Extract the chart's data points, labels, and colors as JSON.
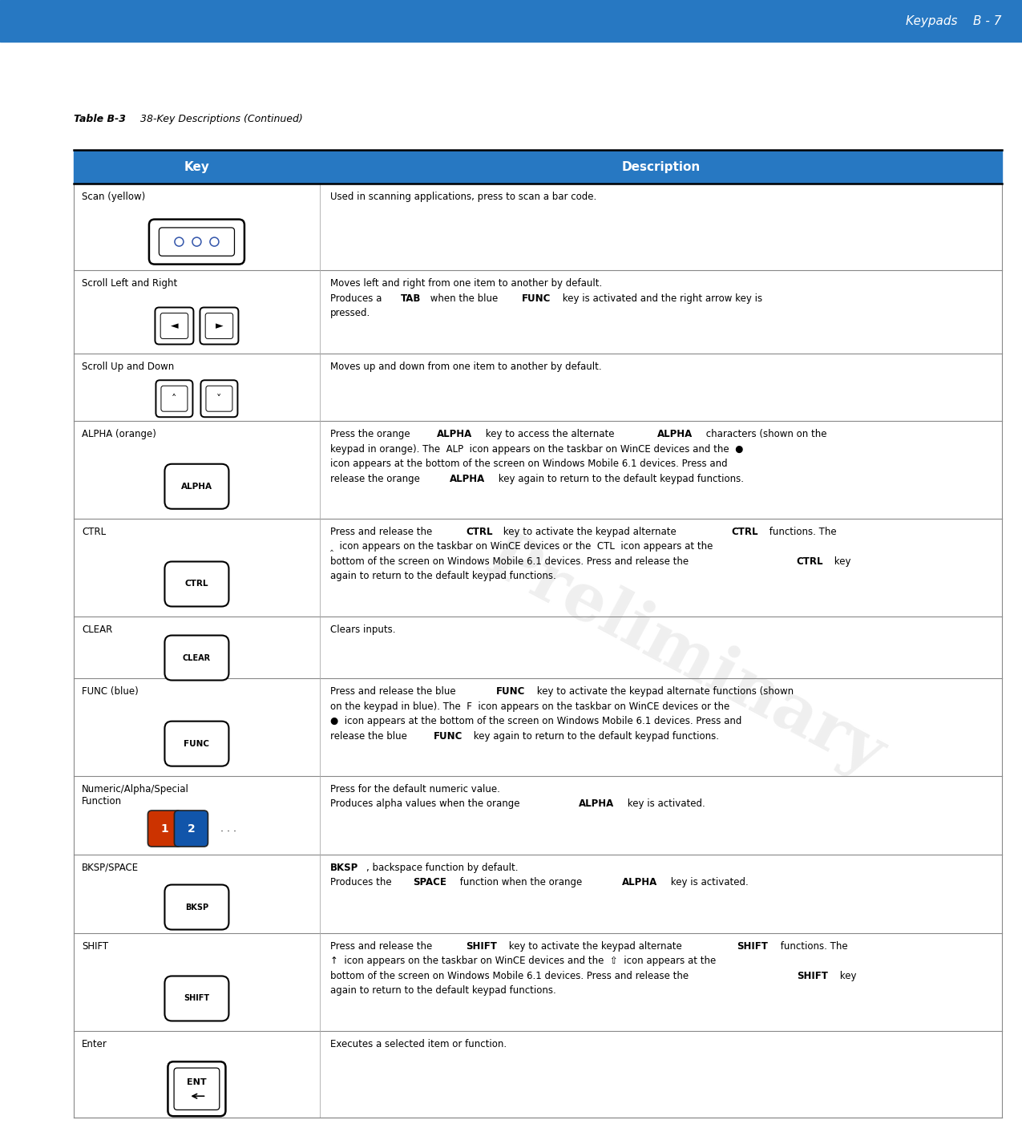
{
  "header_bg": "#2778C2",
  "header_text_color": "#FFFFFF",
  "page_header_bg": "#2778C2",
  "page_header_text": "Keypads    B - 7",
  "table_title_bold": "Table B-3",
  "table_title_italic": "   38-Key Descriptions (Continued)",
  "col_headers": [
    "Key",
    "Description"
  ],
  "bg_color": "#FFFFFF",
  "text_color": "#000000",
  "line_color_dark": "#333333",
  "line_color_mid": "#888888",
  "watermark_text": "Preliminary",
  "rows": [
    {
      "key_name": "Scan (yellow)",
      "key_img": "scan",
      "desc_parts": [
        {
          "text": "Used in scanning applications, press to scan a bar code.",
          "bold": false
        }
      ]
    },
    {
      "key_name": "Scroll Left and Right",
      "key_img": "scroll_lr",
      "desc_parts": [
        {
          "text": "Moves left and right from one item to another by default.\nProduces a ",
          "bold": false
        },
        {
          "text": "TAB",
          "bold": true
        },
        {
          "text": " when the blue ",
          "bold": false
        },
        {
          "text": "FUNC",
          "bold": true
        },
        {
          "text": " key is activated and the right arrow key is\npressed.",
          "bold": false
        }
      ]
    },
    {
      "key_name": "Scroll Up and Down",
      "key_img": "scroll_ud",
      "desc_parts": [
        {
          "text": "Moves up and down from one item to another by default.",
          "bold": false
        }
      ]
    },
    {
      "key_name": "ALPHA (orange)",
      "key_img": "alpha",
      "desc_parts": [
        {
          "text": "Press the orange ",
          "bold": false
        },
        {
          "text": "ALPHA",
          "bold": true
        },
        {
          "text": " key to access the alternate ",
          "bold": false
        },
        {
          "text": "ALPHA",
          "bold": true
        },
        {
          "text": " characters (shown on the\nkeypad in orange). The  ALP  icon appears on the taskbar on WinCE devices and the  ● \nicon appears at the bottom of the screen on Windows Mobile 6.1 devices. Press and\nrelease the orange ",
          "bold": false
        },
        {
          "text": "ALPHA",
          "bold": true
        },
        {
          "text": " key again to return to the default keypad functions.",
          "bold": false
        }
      ]
    },
    {
      "key_name": "CTRL",
      "key_img": "ctrl",
      "desc_parts": [
        {
          "text": "Press and release the ",
          "bold": false
        },
        {
          "text": "CTRL",
          "bold": true
        },
        {
          "text": " key to activate the keypad alternate ",
          "bold": false
        },
        {
          "text": "CTRL",
          "bold": true
        },
        {
          "text": " functions. The\n‸  icon appears on the taskbar on WinCE devices or the  CTL  icon appears at the\nbottom of the screen on Windows Mobile 6.1 devices. Press and release the ",
          "bold": false
        },
        {
          "text": "CTRL",
          "bold": true
        },
        {
          "text": " key\nagain to return to the default keypad functions.",
          "bold": false
        }
      ]
    },
    {
      "key_name": "CLEAR",
      "key_img": "clear",
      "desc_parts": [
        {
          "text": "Clears inputs.",
          "bold": false
        }
      ]
    },
    {
      "key_name": "FUNC (blue)",
      "key_img": "func",
      "desc_parts": [
        {
          "text": "Press and release the blue ",
          "bold": false
        },
        {
          "text": "FUNC",
          "bold": true
        },
        {
          "text": " key to activate the keypad alternate functions (shown\non the keypad in blue). The  F  icon appears on the taskbar on WinCE devices or the\n●  icon appears at the bottom of the screen on Windows Mobile 6.1 devices. Press and\nrelease the blue ",
          "bold": false
        },
        {
          "text": "FUNC",
          "bold": true
        },
        {
          "text": " key again to return to the default keypad functions.",
          "bold": false
        }
      ]
    },
    {
      "key_name": "Numeric/Alpha/Special\nFunction",
      "key_img": "numeric",
      "desc_parts": [
        {
          "text": "Press for the default numeric value.\nProduces alpha values when the orange ",
          "bold": false
        },
        {
          "text": "ALPHA",
          "bold": true
        },
        {
          "text": " key is activated.",
          "bold": false
        }
      ]
    },
    {
      "key_name": "BKSP/SPACE",
      "key_img": "bksp",
      "desc_parts": [
        {
          "text": "BKSP",
          "bold": true
        },
        {
          "text": ", backspace function by default.\nProduces the ",
          "bold": false
        },
        {
          "text": "SPACE",
          "bold": true
        },
        {
          "text": " function when the orange ",
          "bold": false
        },
        {
          "text": "ALPHA",
          "bold": true
        },
        {
          "text": " key is activated.",
          "bold": false
        }
      ]
    },
    {
      "key_name": "SHIFT",
      "key_img": "shift",
      "desc_parts": [
        {
          "text": "Press and release the ",
          "bold": false
        },
        {
          "text": "SHIFT",
          "bold": true
        },
        {
          "text": " key to activate the keypad alternate ",
          "bold": false
        },
        {
          "text": "SHIFT",
          "bold": true
        },
        {
          "text": " functions. The\n↑  icon appears on the taskbar on WinCE devices and the  ⇧  icon appears at the\nbottom of the screen on Windows Mobile 6.1 devices. Press and release the ",
          "bold": false
        },
        {
          "text": "SHIFT",
          "bold": true
        },
        {
          "text": " key\nagain to return to the default keypad functions.",
          "bold": false
        }
      ]
    },
    {
      "key_name": "Enter",
      "key_img": "enter",
      "desc_parts": [
        {
          "text": "Executes a selected item or function.",
          "bold": false
        }
      ]
    }
  ]
}
